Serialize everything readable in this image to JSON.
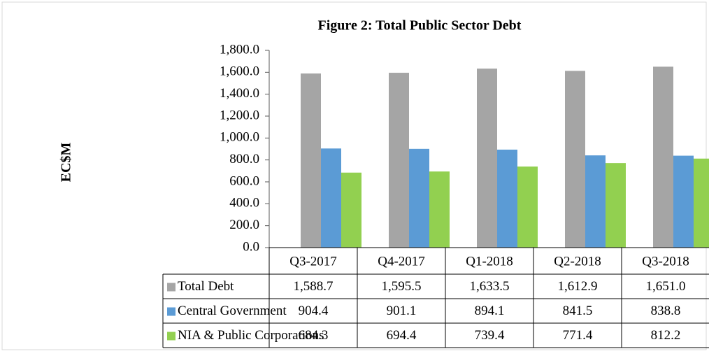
{
  "chart_data": {
    "type": "bar",
    "title": "Figure 2: Total Public Sector Debt",
    "y_label": "EC$M",
    "categories": [
      "Q3-2017",
      "Q4-2017",
      "Q1-2018",
      "Q2-2018",
      "Q3-2018"
    ],
    "series": [
      {
        "name": "Total Debt",
        "color": "#a5a5a5",
        "values": [
          1588.7,
          1595.5,
          1633.5,
          1612.9,
          1651.0
        ],
        "value_labels": [
          "1,588.7",
          "1,595.5",
          "1,633.5",
          "1,612.9",
          "1,651.0"
        ]
      },
      {
        "name": "Central Government",
        "color": "#5b9bd5",
        "values": [
          904.4,
          901.1,
          894.1,
          841.5,
          838.8
        ],
        "value_labels": [
          "904.4",
          "901.1",
          "894.1",
          "841.5",
          "838.8"
        ]
      },
      {
        "name": "NIA & Public Corporations",
        "color": "#92d050",
        "values": [
          684.3,
          694.4,
          739.4,
          771.4,
          812.2
        ],
        "value_labels": [
          "684.3",
          "694.4",
          "739.4",
          "771.4",
          "812.2"
        ]
      }
    ],
    "ylim": [
      0,
      1800
    ],
    "yticks": [
      {
        "value": 0,
        "label": "0.0"
      },
      {
        "value": 200,
        "label": "200.0"
      },
      {
        "value": 400,
        "label": "400.0"
      },
      {
        "value": 600,
        "label": "600.0"
      },
      {
        "value": 800,
        "label": "800.0"
      },
      {
        "value": 1000,
        "label": "1,000.0"
      },
      {
        "value": 1200,
        "label": "1,200.0"
      },
      {
        "value": 1400,
        "label": "1,400.0"
      },
      {
        "value": 1600,
        "label": "1,600.0"
      },
      {
        "value": 1800,
        "label": "1,800.0"
      }
    ],
    "data_table": true
  }
}
